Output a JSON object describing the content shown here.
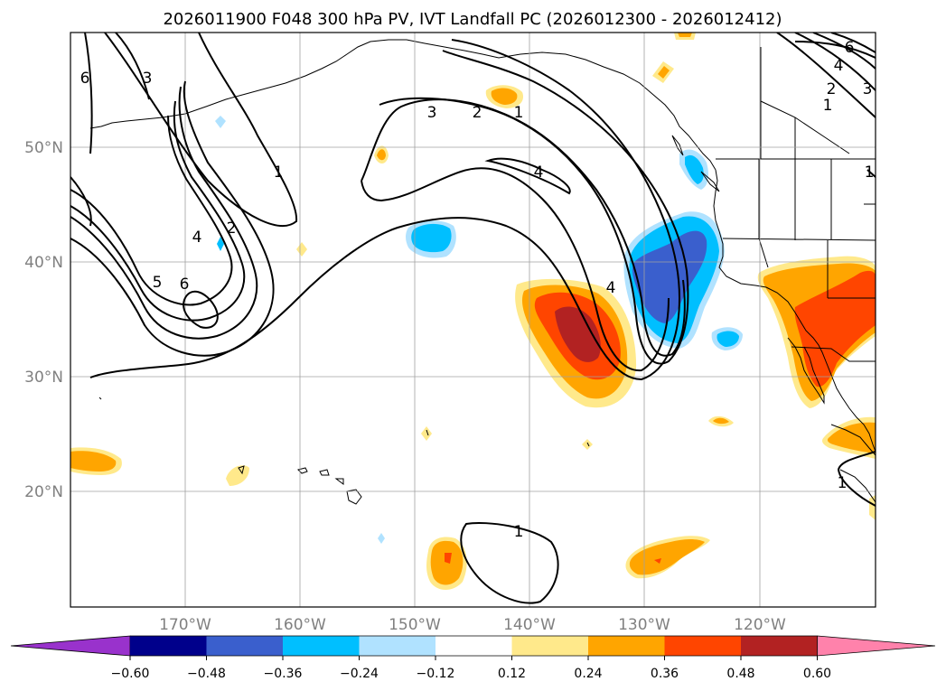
{
  "title": "2026011900 F048 300 hPa PV, IVT Landfall PC (2026012300 - 2026012412)",
  "colors": {
    "grid": "#a0a0a0",
    "coast": "#000000",
    "cb_bins": [
      "#9932cc",
      "#00008b",
      "#3a5fcd",
      "#00bfff",
      "#b0e2ff",
      "#ffffff",
      "#ffe98b",
      "#ffa500",
      "#ff4500",
      "#b22222",
      "#ff82ab"
    ]
  },
  "map": {
    "lon_labels": [
      "170°W",
      "160°W",
      "150°W",
      "140°W",
      "130°W",
      "120°W"
    ],
    "lat_labels": [
      "50°N",
      "40°N",
      "30°N",
      "20°N"
    ]
  },
  "contour_labels": [
    "6",
    "3",
    "1",
    "2",
    "4",
    "5",
    "6",
    "3",
    "2",
    "1",
    "4",
    "4",
    "1",
    "6",
    "4",
    "2",
    "1",
    "3",
    "1",
    "1"
  ],
  "colorbar": {
    "ticks": [
      "−0.60",
      "−0.48",
      "−0.36",
      "−0.24",
      "−0.12",
      "0.12",
      "0.24",
      "0.36",
      "0.48",
      "0.60"
    ]
  }
}
